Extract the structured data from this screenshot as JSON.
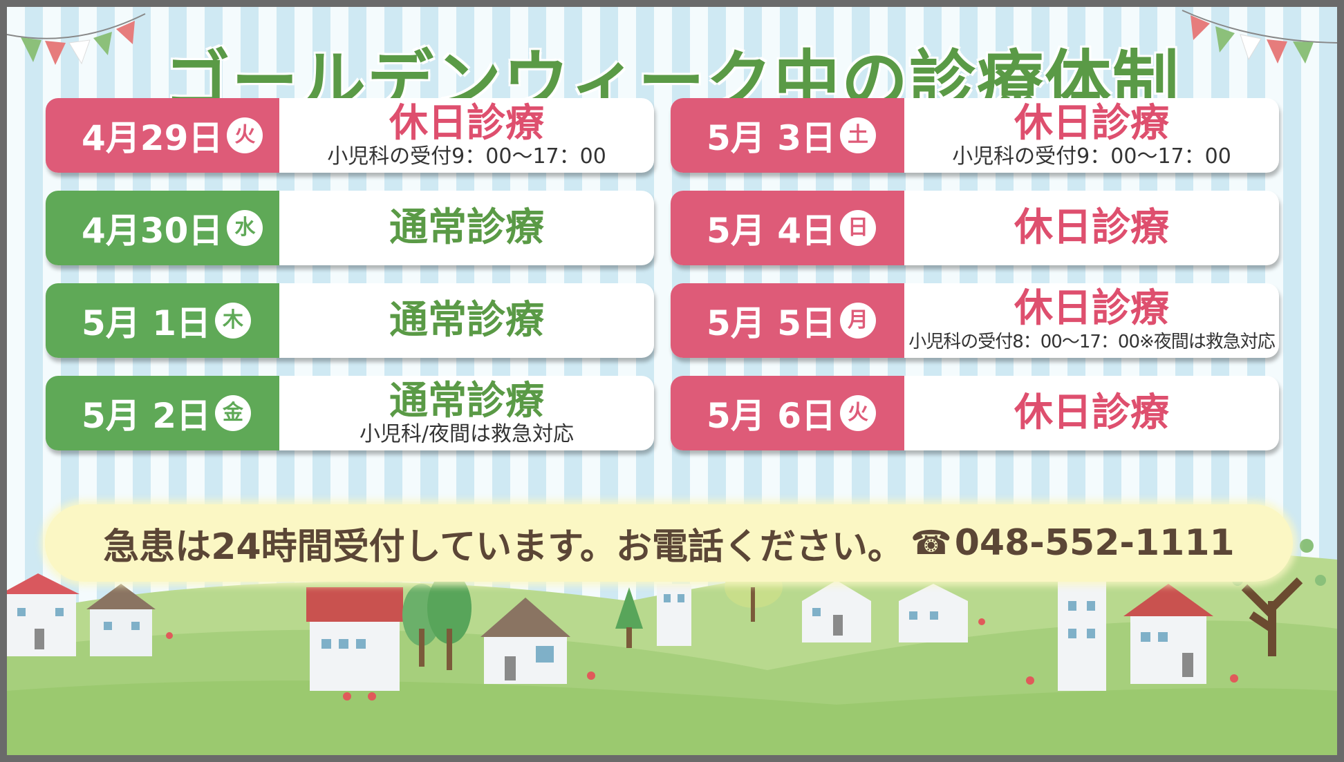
{
  "title": "ゴールデンウィーク中の診療体制",
  "left_column": [
    {
      "date": "4月29日",
      "weekday": "火",
      "date_color": "pink",
      "status": "休日診療",
      "status_color": "pink",
      "note": "小児科の受付9：00～17：00"
    },
    {
      "date": "4月30日",
      "weekday": "水",
      "date_color": "green",
      "status": "通常診療",
      "status_color": "green",
      "note": ""
    },
    {
      "date": "5月 1日",
      "weekday": "木",
      "date_color": "green",
      "status": "通常診療",
      "status_color": "green",
      "note": ""
    },
    {
      "date": "5月 2日",
      "weekday": "金",
      "date_color": "green",
      "status": "通常診療",
      "status_color": "green",
      "note": "小児科/夜間は救急対応"
    }
  ],
  "right_column": [
    {
      "date": "5月 3日",
      "weekday": "土",
      "date_color": "pink",
      "status": "休日診療",
      "status_color": "pink",
      "note": "小児科の受付9：00～17：00"
    },
    {
      "date": "5月 4日",
      "weekday": "日",
      "date_color": "pink",
      "status": "休日診療",
      "status_color": "pink",
      "note": ""
    },
    {
      "date": "5月 5日",
      "weekday": "月",
      "date_color": "pink",
      "status": "休日診療",
      "status_color": "pink",
      "note": "小児科の受付8：00～17：00※夜間は救急対応"
    },
    {
      "date": "5月 6日",
      "weekday": "火",
      "date_color": "pink",
      "status": "休日診療",
      "status_color": "pink",
      "note": ""
    }
  ],
  "emergency": {
    "text": "急患は24時間受付しています。お電話ください。",
    "phone_icon": "☎",
    "phone": "048-552-1111"
  },
  "colors": {
    "green": "#5fa957",
    "pink": "#de5b78",
    "title": "#5a9a46",
    "emergency_bg": "#fbf7c4",
    "emergency_text": "#5b4636"
  },
  "icons": [
    "bunting-flags",
    "houses",
    "trees",
    "hills",
    "flowers",
    "phone-icon"
  ]
}
